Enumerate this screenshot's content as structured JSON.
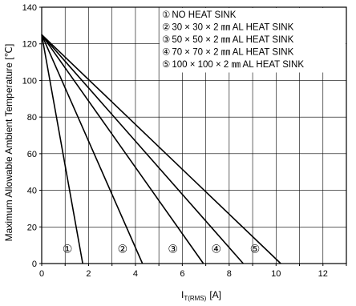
{
  "chart_data": {
    "type": "line",
    "title": "",
    "xlabel_main": "I",
    "xlabel_sub": "T(RMS)",
    "xlabel_unit": "[A]",
    "ylabel": "Maximum Allowable Ambient Temperature [℃]",
    "xlim": [
      0,
      13
    ],
    "ylim": [
      0,
      140
    ],
    "xticks": [
      0,
      2,
      4,
      6,
      8,
      10,
      12
    ],
    "yticks": [
      0,
      20,
      40,
      60,
      80,
      100,
      120,
      140
    ],
    "grid": true,
    "legend_position": "top-right",
    "series": [
      {
        "name": "NO HEAT SINK",
        "marker": "①",
        "x": [
          0,
          1.75
        ],
        "y": [
          125,
          0
        ]
      },
      {
        "name": "30 × 30 × 2 ㎜  AL HEAT SINK",
        "marker": "②",
        "x": [
          0,
          4.3
        ],
        "y": [
          125,
          0
        ]
      },
      {
        "name": "50 × 50 × 2 ㎜  AL HEAT SINK",
        "marker": "③",
        "x": [
          0,
          6.9
        ],
        "y": [
          125,
          0
        ]
      },
      {
        "name": "70 × 70 × 2 ㎜  AL HEAT SINK",
        "marker": "④",
        "x": [
          0,
          8.6
        ],
        "y": [
          125,
          0
        ]
      },
      {
        "name": "100 × 100 × 2 ㎜  AL HEAT SINK",
        "marker": "⑤",
        "x": [
          0,
          10.2
        ],
        "y": [
          125,
          0
        ]
      }
    ],
    "curve_labels": [
      {
        "text": "①",
        "x": 1.1,
        "y": 8
      },
      {
        "text": "②",
        "x": 3.45,
        "y": 8
      },
      {
        "text": "③",
        "x": 5.6,
        "y": 8
      },
      {
        "text": "④",
        "x": 7.45,
        "y": 8
      },
      {
        "text": "⑤",
        "x": 9.1,
        "y": 8
      }
    ]
  }
}
